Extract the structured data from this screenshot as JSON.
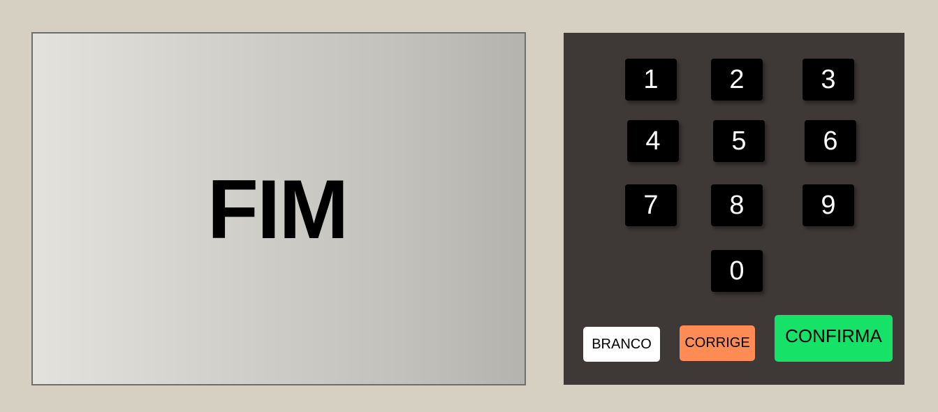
{
  "screen": {
    "message": "FIM"
  },
  "keypad": {
    "keys": [
      "1",
      "2",
      "3",
      "4",
      "5",
      "6",
      "7",
      "8",
      "9",
      "0"
    ],
    "branco_label": "BRANCO",
    "corrige_label": "CORRIGE",
    "confirma_label": "CONFIRMA"
  },
  "colors": {
    "background": "#d6d0c2",
    "keypad_body": "#3e3837",
    "key": "#000000",
    "branco": "#ffffff",
    "corrige": "#ff8c55",
    "confirma": "#16e267"
  }
}
